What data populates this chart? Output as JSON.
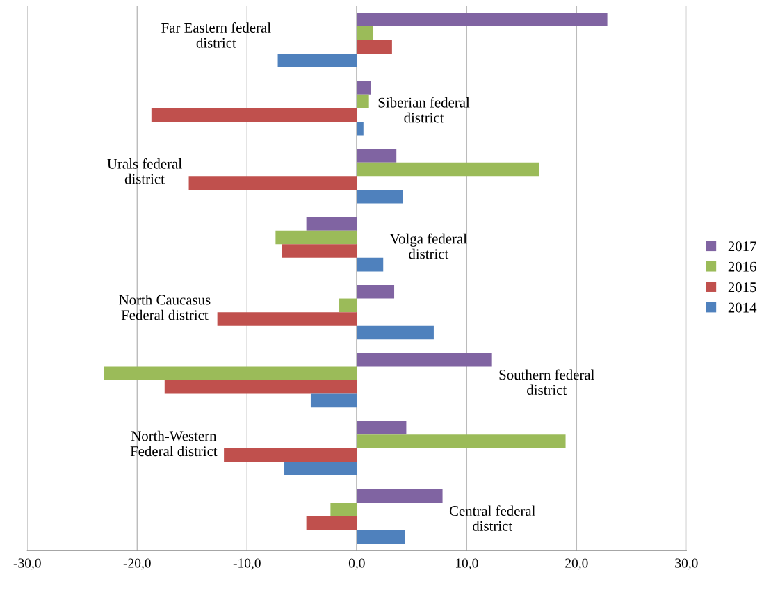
{
  "chart_data": {
    "type": "bar",
    "orientation": "horizontal",
    "categories": [
      "Far Eastern federal\ndistrict",
      "Siberian federal\ndistrict",
      "Urals federal\ndistrict",
      "Volga federal\ndistrict",
      "North Caucasus\nFederal district",
      "Southern federal\ndistrict",
      "North-Western\nFederal district",
      "Central federal\ndistrict"
    ],
    "series": [
      {
        "name": "2017",
        "color": "#8064a2",
        "values": [
          22.8,
          1.3,
          3.6,
          -4.6,
          3.4,
          12.3,
          4.5,
          7.8
        ]
      },
      {
        "name": "2016",
        "color": "#9bbb59",
        "values": [
          1.5,
          1.1,
          16.6,
          -7.4,
          -1.6,
          -23.0,
          19.0,
          -2.4
        ]
      },
      {
        "name": "2015",
        "color": "#c0504d",
        "values": [
          3.2,
          -18.7,
          -15.3,
          -6.8,
          -12.7,
          -17.5,
          -12.1,
          -4.6
        ]
      },
      {
        "name": "2014",
        "color": "#4f81bd",
        "values": [
          -7.2,
          0.6,
          4.2,
          2.4,
          7.0,
          -4.2,
          -6.6,
          4.4
        ]
      }
    ],
    "xlim": [
      -30,
      30
    ],
    "xticks": [
      {
        "value": -30,
        "label": "-30,0"
      },
      {
        "value": -20,
        "label": "-20,0"
      },
      {
        "value": -10,
        "label": "-10,0"
      },
      {
        "value": 0,
        "label": "0,0"
      },
      {
        "value": 10,
        "label": "10,0"
      },
      {
        "value": 20,
        "label": "20,0"
      },
      {
        "value": 30,
        "label": "30,0"
      }
    ],
    "grid": "x",
    "legend": "right"
  }
}
